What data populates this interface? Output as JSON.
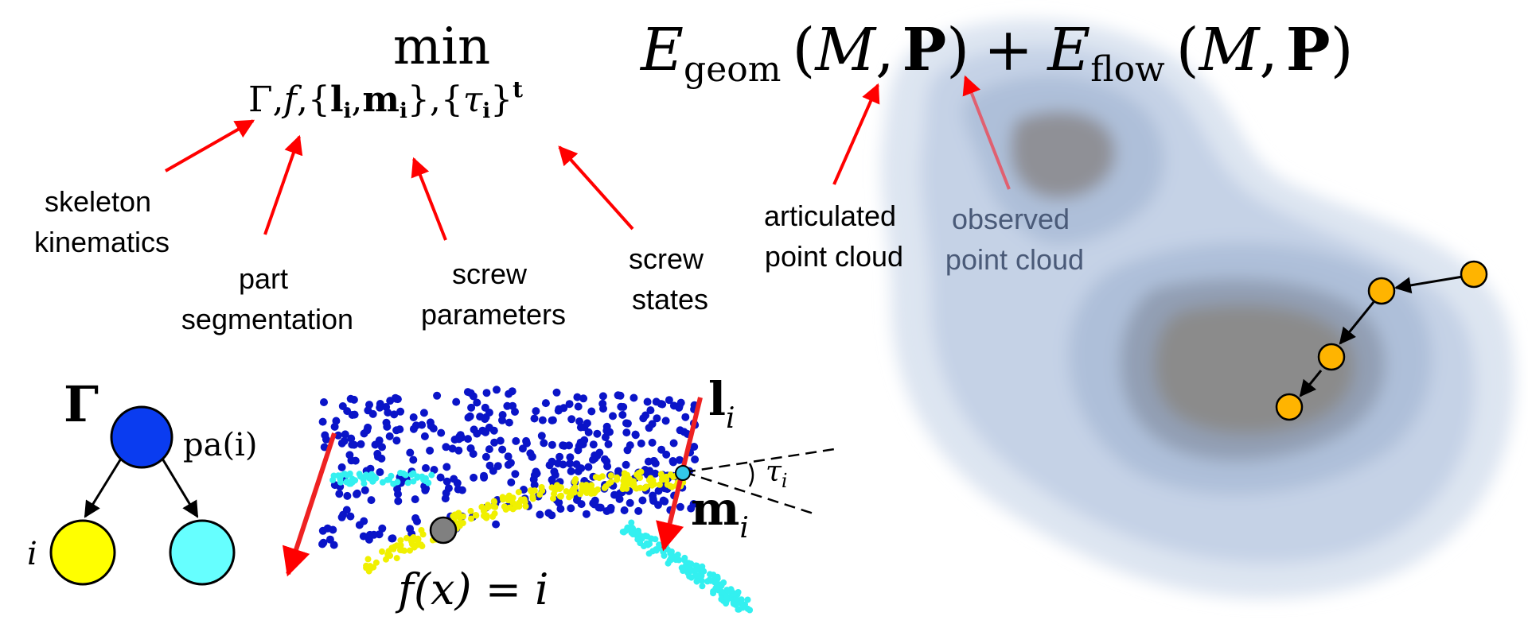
{
  "equation": {
    "min_word": "min",
    "subscript": {
      "gamma": "Γ",
      "sep1": ",",
      "f": "f",
      "sep2": ",{",
      "l": "l",
      "l_sub": "i",
      "sep3": ",",
      "m": "m",
      "m_sub": "i",
      "sep4": "},{",
      "tau": "τ",
      "tau_sub": "i",
      "close": "}",
      "t_sup": "t"
    },
    "E1": "E",
    "E1_sub": "geom",
    "E2": "E",
    "E2_sub": "flow",
    "open": "(",
    "M": "M",
    "comma": ",",
    "P": "P",
    "close": ")",
    "plus": "+"
  },
  "labels": {
    "skeleton": [
      "skeleton",
      "kinematics"
    ],
    "part": [
      "part",
      "segmentation"
    ],
    "screw_params": [
      "screw",
      "parameters"
    ],
    "screw_states": [
      "screw",
      "states"
    ],
    "articulated": [
      "articulated",
      "point cloud"
    ],
    "observed": [
      "observed",
      "point cloud"
    ]
  },
  "tree": {
    "root_label": "Γ",
    "parent_label": "pa(i)",
    "child_label": "i"
  },
  "cloud": {
    "li": "l",
    "li_sub": "i",
    "mi": "m",
    "mi_sub": "i",
    "tau": "τ",
    "tau_sub": "i",
    "fx": "f(x) = i"
  },
  "colors": {
    "arrow": "#ff0000",
    "root_node": "#0a3cf0",
    "child_yellow": "#ffff00",
    "child_cyan": "#66ffff",
    "points_blue": "#0a14c8",
    "points_yellow": "#f0f000",
    "points_cyan": "#33f0f0",
    "orange_node": "#ffb400",
    "density_light": "#d8e1ef",
    "density_dark": "#8e8e8e"
  }
}
